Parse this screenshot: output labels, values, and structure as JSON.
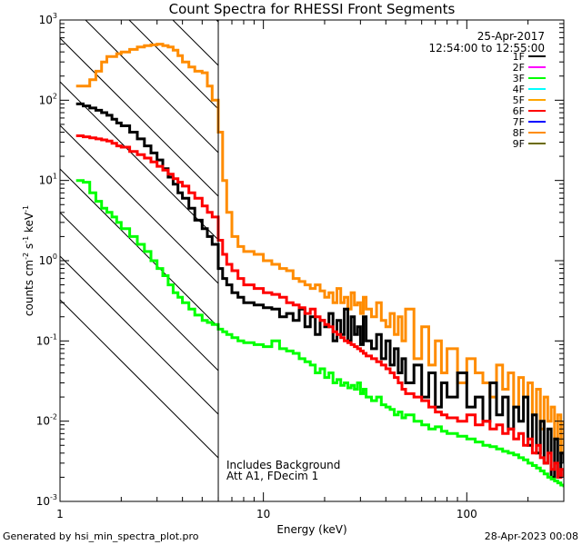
{
  "chart_data": {
    "type": "line",
    "title": "Count Spectra for RHESSI Front Segments",
    "xlabel": "Energy (keV)",
    "ylabel_parts": [
      "counts cm",
      "-2",
      " s",
      "-1",
      " keV",
      "-1"
    ],
    "xscale": "log",
    "yscale": "log",
    "xlim": [
      1,
      300
    ],
    "ylim": [
      0.001,
      1000
    ],
    "x_tick_labels": [
      {
        "value": 1,
        "label": "1"
      },
      {
        "value": 10,
        "label": "10"
      },
      {
        "value": 100,
        "label": "100"
      }
    ],
    "y_tick_labels": [
      {
        "value": 0.001,
        "base": "10",
        "exp": "-3"
      },
      {
        "value": 0.01,
        "base": "10",
        "exp": "-2"
      },
      {
        "value": 0.1,
        "base": "10",
        "exp": "-1"
      },
      {
        "value": 1,
        "base": "10",
        "exp": "0"
      },
      {
        "value": 10,
        "base": "10",
        "exp": "1"
      },
      {
        "value": 100,
        "base": "10",
        "exp": "2"
      },
      {
        "value": 1000,
        "base": "10",
        "exp": "3"
      }
    ],
    "shaded_region": {
      "from": 1,
      "to": 6,
      "style": "diagonal hatching"
    },
    "vertical_line": 6,
    "annotations": {
      "date": "25-Apr-2017",
      "time_range": "12:54:00 to 12:55:00",
      "background_note": "Includes Background",
      "attenuator_note": "Att A1, FDecim 1"
    },
    "legend": [
      {
        "name": "1F",
        "color": "#000000"
      },
      {
        "name": "2F",
        "color": "#ff00ff"
      },
      {
        "name": "3F",
        "color": "#00ff00"
      },
      {
        "name": "4F",
        "color": "#00ffff"
      },
      {
        "name": "5F",
        "color": "#ffa500"
      },
      {
        "name": "6F",
        "color": "#ff0000"
      },
      {
        "name": "7F",
        "color": "#0000ff"
      },
      {
        "name": "8F",
        "color": "#ff8c00"
      },
      {
        "name": "9F",
        "color": "#6b6b00"
      }
    ],
    "series": [
      {
        "name": "8F",
        "color": "#ff8c00",
        "x": [
          1.2,
          1.3,
          1.4,
          1.5,
          1.6,
          1.7,
          1.8,
          1.9,
          2.0,
          2.2,
          2.4,
          2.6,
          2.8,
          3.0,
          3.2,
          3.4,
          3.6,
          3.8,
          4.0,
          4.3,
          4.6,
          5.0,
          5.3,
          5.6,
          6.0,
          6.3,
          6.6,
          7.0,
          7.5,
          8,
          9,
          10,
          11,
          12,
          13,
          14,
          15,
          16,
          17,
          18,
          19,
          20,
          21,
          22,
          23,
          24,
          25,
          26,
          27,
          28,
          29,
          30,
          31,
          32,
          34,
          36,
          38,
          40,
          42,
          44,
          46,
          48,
          50,
          55,
          60,
          65,
          70,
          75,
          80,
          90,
          100,
          110,
          120,
          130,
          140,
          150,
          160,
          170,
          180,
          190,
          200,
          210,
          220,
          230,
          240,
          250,
          260,
          270,
          280,
          290,
          300
        ],
        "y": [
          150,
          150,
          180,
          230,
          300,
          350,
          350,
          380,
          400,
          430,
          460,
          480,
          490,
          500,
          480,
          460,
          420,
          360,
          300,
          260,
          230,
          220,
          150,
          100,
          40,
          10,
          4.0,
          2.0,
          1.5,
          1.3,
          1.2,
          1.0,
          0.9,
          0.8,
          0.75,
          0.6,
          0.55,
          0.5,
          0.45,
          0.5,
          0.42,
          0.35,
          0.4,
          0.3,
          0.45,
          0.3,
          0.35,
          0.25,
          0.4,
          0.28,
          0.3,
          0.22,
          0.35,
          0.25,
          0.2,
          0.3,
          0.18,
          0.15,
          0.22,
          0.12,
          0.2,
          0.1,
          0.25,
          0.06,
          0.15,
          0.05,
          0.1,
          0.04,
          0.08,
          0.03,
          0.06,
          0.04,
          0.03,
          0.02,
          0.05,
          0.025,
          0.04,
          0.015,
          0.035,
          0.02,
          0.03,
          0.012,
          0.025,
          0.008,
          0.02,
          0.01,
          0.015,
          0.006,
          0.012,
          0.004,
          0.01
        ]
      },
      {
        "name": "1F",
        "color": "#000000",
        "x": [
          1.2,
          1.3,
          1.4,
          1.5,
          1.6,
          1.7,
          1.8,
          1.9,
          2.0,
          2.2,
          2.4,
          2.6,
          2.8,
          3.0,
          3.2,
          3.4,
          3.6,
          3.8,
          4.0,
          4.3,
          4.6,
          5.0,
          5.3,
          5.6,
          6.0,
          6.3,
          6.6,
          7.0,
          7.5,
          8,
          9,
          10,
          11,
          12,
          13,
          14,
          15,
          16,
          17,
          18,
          19,
          20,
          21,
          22,
          23,
          24,
          25,
          26,
          27,
          28,
          29,
          30,
          31,
          32,
          34,
          36,
          38,
          40,
          42,
          44,
          46,
          48,
          50,
          55,
          60,
          65,
          70,
          75,
          80,
          90,
          100,
          110,
          120,
          130,
          140,
          150,
          160,
          170,
          180,
          190,
          200,
          210,
          220,
          230,
          240,
          250,
          260,
          270,
          280,
          290,
          300
        ],
        "y": [
          90,
          85,
          80,
          75,
          70,
          65,
          58,
          52,
          48,
          40,
          33,
          27,
          22,
          18,
          14,
          11,
          9,
          7,
          6,
          4.5,
          3.2,
          2.5,
          2.0,
          1.6,
          0.8,
          0.6,
          0.5,
          0.4,
          0.35,
          0.3,
          0.28,
          0.26,
          0.25,
          0.2,
          0.22,
          0.18,
          0.25,
          0.15,
          0.2,
          0.12,
          0.18,
          0.15,
          0.22,
          0.1,
          0.18,
          0.12,
          0.25,
          0.1,
          0.2,
          0.12,
          0.15,
          0.09,
          0.2,
          0.1,
          0.08,
          0.12,
          0.06,
          0.1,
          0.05,
          0.08,
          0.04,
          0.06,
          0.03,
          0.05,
          0.02,
          0.04,
          0.015,
          0.03,
          0.02,
          0.04,
          0.015,
          0.02,
          0.01,
          0.03,
          0.012,
          0.02,
          0.008,
          0.015,
          0.01,
          0.02,
          0.005,
          0.012,
          0.004,
          0.01,
          0.003,
          0.008,
          0.002,
          0.006,
          0.002,
          0.004,
          0.003
        ]
      },
      {
        "name": "6F",
        "color": "#ff0000",
        "x": [
          1.2,
          1.3,
          1.4,
          1.5,
          1.6,
          1.7,
          1.8,
          1.9,
          2.0,
          2.2,
          2.4,
          2.6,
          2.8,
          3.0,
          3.2,
          3.4,
          3.6,
          3.8,
          4.0,
          4.3,
          4.6,
          5.0,
          5.3,
          5.6,
          6.0,
          6.3,
          6.6,
          7.0,
          7.5,
          8,
          9,
          10,
          11,
          12,
          13,
          14,
          15,
          16,
          17,
          18,
          19,
          20,
          21,
          22,
          23,
          24,
          25,
          26,
          27,
          28,
          29,
          30,
          31,
          32,
          34,
          36,
          38,
          40,
          42,
          44,
          46,
          48,
          50,
          55,
          60,
          65,
          70,
          75,
          80,
          90,
          100,
          110,
          120,
          130,
          140,
          150,
          160,
          170,
          180,
          190,
          200,
          210,
          220,
          230,
          240,
          250,
          260,
          270,
          280,
          290,
          300
        ],
        "y": [
          36,
          35,
          34,
          33,
          32,
          31,
          29,
          27,
          26,
          23,
          21,
          19,
          17,
          15,
          13.5,
          12,
          10.5,
          9.5,
          8.5,
          7,
          6,
          4.8,
          4,
          3.5,
          1.8,
          1.2,
          0.9,
          0.75,
          0.6,
          0.5,
          0.45,
          0.4,
          0.38,
          0.35,
          0.3,
          0.28,
          0.26,
          0.22,
          0.25,
          0.2,
          0.18,
          0.16,
          0.15,
          0.13,
          0.12,
          0.11,
          0.1,
          0.095,
          0.09,
          0.085,
          0.08,
          0.075,
          0.07,
          0.065,
          0.06,
          0.055,
          0.05,
          0.045,
          0.04,
          0.035,
          0.03,
          0.025,
          0.022,
          0.02,
          0.018,
          0.015,
          0.013,
          0.012,
          0.011,
          0.01,
          0.012,
          0.009,
          0.01,
          0.008,
          0.009,
          0.007,
          0.008,
          0.006,
          0.007,
          0.005,
          0.006,
          0.004,
          0.005,
          0.0035,
          0.003,
          0.004,
          0.0025,
          0.003,
          0.002,
          0.0025,
          0.002
        ]
      },
      {
        "name": "3F",
        "color": "#00ff00",
        "x": [
          1.2,
          1.3,
          1.4,
          1.5,
          1.6,
          1.7,
          1.8,
          1.9,
          2.0,
          2.2,
          2.4,
          2.6,
          2.8,
          3.0,
          3.2,
          3.4,
          3.6,
          3.8,
          4.0,
          4.3,
          4.6,
          5.0,
          5.3,
          5.6,
          6.0,
          6.3,
          6.6,
          7.0,
          7.5,
          8,
          9,
          10,
          11,
          12,
          13,
          14,
          15,
          16,
          17,
          18,
          19,
          20,
          21,
          22,
          23,
          24,
          25,
          26,
          27,
          28,
          29,
          30,
          31,
          32,
          34,
          36,
          38,
          40,
          42,
          44,
          46,
          48,
          50,
          55,
          60,
          65,
          70,
          75,
          80,
          90,
          100,
          110,
          120,
          130,
          140,
          150,
          160,
          170,
          180,
          190,
          200,
          210,
          220,
          230,
          240,
          250,
          260,
          270,
          280,
          290,
          300
        ],
        "y": [
          10,
          9.5,
          7,
          5.5,
          4.5,
          4,
          3.5,
          3,
          2.5,
          2.0,
          1.6,
          1.3,
          1.0,
          0.8,
          0.65,
          0.5,
          0.4,
          0.35,
          0.3,
          0.25,
          0.21,
          0.18,
          0.17,
          0.16,
          0.14,
          0.13,
          0.12,
          0.11,
          0.1,
          0.095,
          0.09,
          0.085,
          0.1,
          0.08,
          0.075,
          0.07,
          0.06,
          0.055,
          0.05,
          0.04,
          0.045,
          0.035,
          0.04,
          0.03,
          0.033,
          0.028,
          0.03,
          0.026,
          0.028,
          0.025,
          0.03,
          0.022,
          0.025,
          0.02,
          0.018,
          0.02,
          0.016,
          0.015,
          0.014,
          0.012,
          0.013,
          0.011,
          0.012,
          0.01,
          0.009,
          0.008,
          0.0085,
          0.0075,
          0.007,
          0.0065,
          0.006,
          0.0055,
          0.005,
          0.0048,
          0.0045,
          0.0042,
          0.004,
          0.0038,
          0.0035,
          0.0033,
          0.003,
          0.0028,
          0.0026,
          0.0024,
          0.0022,
          0.002,
          0.0019,
          0.0018,
          0.0017,
          0.0016,
          0.0015
        ]
      }
    ]
  },
  "footer": {
    "generator": "Generated by hsi_min_spectra_plot.pro",
    "timestamp": "28-Apr-2023 00:08"
  }
}
